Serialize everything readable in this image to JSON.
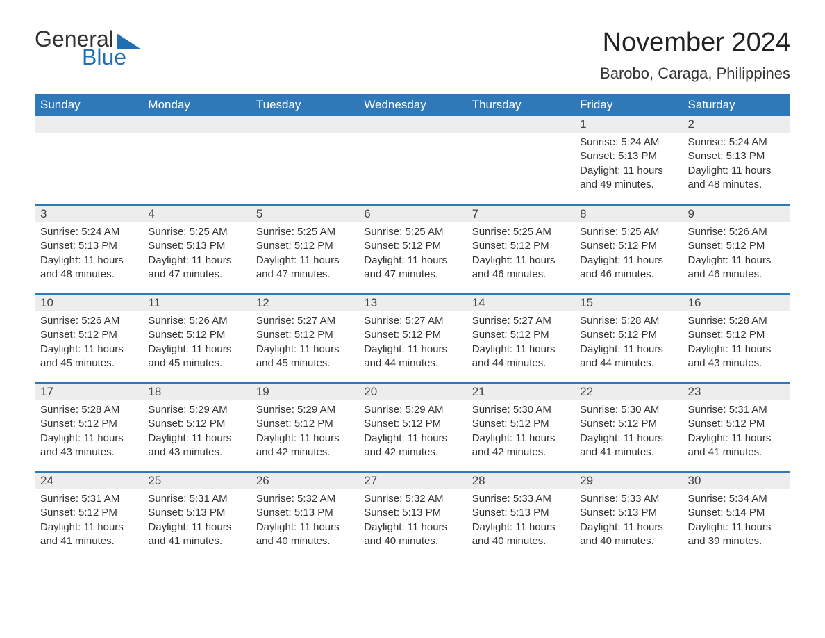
{
  "logo": {
    "word1": "General",
    "word2": "Blue"
  },
  "title": "November 2024",
  "location": "Barobo, Caraga, Philippines",
  "colors": {
    "header_bg": "#3079b8",
    "header_text": "#ffffff",
    "daynum_bg": "#ededed",
    "row_border": "#3079b8",
    "logo_accent": "#1f6fb2",
    "body_text": "#333333",
    "page_bg": "#ffffff"
  },
  "fonts": {
    "title_size_pt": 28,
    "location_size_pt": 16,
    "header_size_pt": 13,
    "body_size_pt": 11
  },
  "day_headers": [
    "Sunday",
    "Monday",
    "Tuesday",
    "Wednesday",
    "Thursday",
    "Friday",
    "Saturday"
  ],
  "weeks": [
    [
      null,
      null,
      null,
      null,
      null,
      {
        "n": "1",
        "sunrise": "Sunrise: 5:24 AM",
        "sunset": "Sunset: 5:13 PM",
        "daylight": "Daylight: 11 hours and 49 minutes."
      },
      {
        "n": "2",
        "sunrise": "Sunrise: 5:24 AM",
        "sunset": "Sunset: 5:13 PM",
        "daylight": "Daylight: 11 hours and 48 minutes."
      }
    ],
    [
      {
        "n": "3",
        "sunrise": "Sunrise: 5:24 AM",
        "sunset": "Sunset: 5:13 PM",
        "daylight": "Daylight: 11 hours and 48 minutes."
      },
      {
        "n": "4",
        "sunrise": "Sunrise: 5:25 AM",
        "sunset": "Sunset: 5:13 PM",
        "daylight": "Daylight: 11 hours and 47 minutes."
      },
      {
        "n": "5",
        "sunrise": "Sunrise: 5:25 AM",
        "sunset": "Sunset: 5:12 PM",
        "daylight": "Daylight: 11 hours and 47 minutes."
      },
      {
        "n": "6",
        "sunrise": "Sunrise: 5:25 AM",
        "sunset": "Sunset: 5:12 PM",
        "daylight": "Daylight: 11 hours and 47 minutes."
      },
      {
        "n": "7",
        "sunrise": "Sunrise: 5:25 AM",
        "sunset": "Sunset: 5:12 PM",
        "daylight": "Daylight: 11 hours and 46 minutes."
      },
      {
        "n": "8",
        "sunrise": "Sunrise: 5:25 AM",
        "sunset": "Sunset: 5:12 PM",
        "daylight": "Daylight: 11 hours and 46 minutes."
      },
      {
        "n": "9",
        "sunrise": "Sunrise: 5:26 AM",
        "sunset": "Sunset: 5:12 PM",
        "daylight": "Daylight: 11 hours and 46 minutes."
      }
    ],
    [
      {
        "n": "10",
        "sunrise": "Sunrise: 5:26 AM",
        "sunset": "Sunset: 5:12 PM",
        "daylight": "Daylight: 11 hours and 45 minutes."
      },
      {
        "n": "11",
        "sunrise": "Sunrise: 5:26 AM",
        "sunset": "Sunset: 5:12 PM",
        "daylight": "Daylight: 11 hours and 45 minutes."
      },
      {
        "n": "12",
        "sunrise": "Sunrise: 5:27 AM",
        "sunset": "Sunset: 5:12 PM",
        "daylight": "Daylight: 11 hours and 45 minutes."
      },
      {
        "n": "13",
        "sunrise": "Sunrise: 5:27 AM",
        "sunset": "Sunset: 5:12 PM",
        "daylight": "Daylight: 11 hours and 44 minutes."
      },
      {
        "n": "14",
        "sunrise": "Sunrise: 5:27 AM",
        "sunset": "Sunset: 5:12 PM",
        "daylight": "Daylight: 11 hours and 44 minutes."
      },
      {
        "n": "15",
        "sunrise": "Sunrise: 5:28 AM",
        "sunset": "Sunset: 5:12 PM",
        "daylight": "Daylight: 11 hours and 44 minutes."
      },
      {
        "n": "16",
        "sunrise": "Sunrise: 5:28 AM",
        "sunset": "Sunset: 5:12 PM",
        "daylight": "Daylight: 11 hours and 43 minutes."
      }
    ],
    [
      {
        "n": "17",
        "sunrise": "Sunrise: 5:28 AM",
        "sunset": "Sunset: 5:12 PM",
        "daylight": "Daylight: 11 hours and 43 minutes."
      },
      {
        "n": "18",
        "sunrise": "Sunrise: 5:29 AM",
        "sunset": "Sunset: 5:12 PM",
        "daylight": "Daylight: 11 hours and 43 minutes."
      },
      {
        "n": "19",
        "sunrise": "Sunrise: 5:29 AM",
        "sunset": "Sunset: 5:12 PM",
        "daylight": "Daylight: 11 hours and 42 minutes."
      },
      {
        "n": "20",
        "sunrise": "Sunrise: 5:29 AM",
        "sunset": "Sunset: 5:12 PM",
        "daylight": "Daylight: 11 hours and 42 minutes."
      },
      {
        "n": "21",
        "sunrise": "Sunrise: 5:30 AM",
        "sunset": "Sunset: 5:12 PM",
        "daylight": "Daylight: 11 hours and 42 minutes."
      },
      {
        "n": "22",
        "sunrise": "Sunrise: 5:30 AM",
        "sunset": "Sunset: 5:12 PM",
        "daylight": "Daylight: 11 hours and 41 minutes."
      },
      {
        "n": "23",
        "sunrise": "Sunrise: 5:31 AM",
        "sunset": "Sunset: 5:12 PM",
        "daylight": "Daylight: 11 hours and 41 minutes."
      }
    ],
    [
      {
        "n": "24",
        "sunrise": "Sunrise: 5:31 AM",
        "sunset": "Sunset: 5:12 PM",
        "daylight": "Daylight: 11 hours and 41 minutes."
      },
      {
        "n": "25",
        "sunrise": "Sunrise: 5:31 AM",
        "sunset": "Sunset: 5:13 PM",
        "daylight": "Daylight: 11 hours and 41 minutes."
      },
      {
        "n": "26",
        "sunrise": "Sunrise: 5:32 AM",
        "sunset": "Sunset: 5:13 PM",
        "daylight": "Daylight: 11 hours and 40 minutes."
      },
      {
        "n": "27",
        "sunrise": "Sunrise: 5:32 AM",
        "sunset": "Sunset: 5:13 PM",
        "daylight": "Daylight: 11 hours and 40 minutes."
      },
      {
        "n": "28",
        "sunrise": "Sunrise: 5:33 AM",
        "sunset": "Sunset: 5:13 PM",
        "daylight": "Daylight: 11 hours and 40 minutes."
      },
      {
        "n": "29",
        "sunrise": "Sunrise: 5:33 AM",
        "sunset": "Sunset: 5:13 PM",
        "daylight": "Daylight: 11 hours and 40 minutes."
      },
      {
        "n": "30",
        "sunrise": "Sunrise: 5:34 AM",
        "sunset": "Sunset: 5:14 PM",
        "daylight": "Daylight: 11 hours and 39 minutes."
      }
    ]
  ]
}
